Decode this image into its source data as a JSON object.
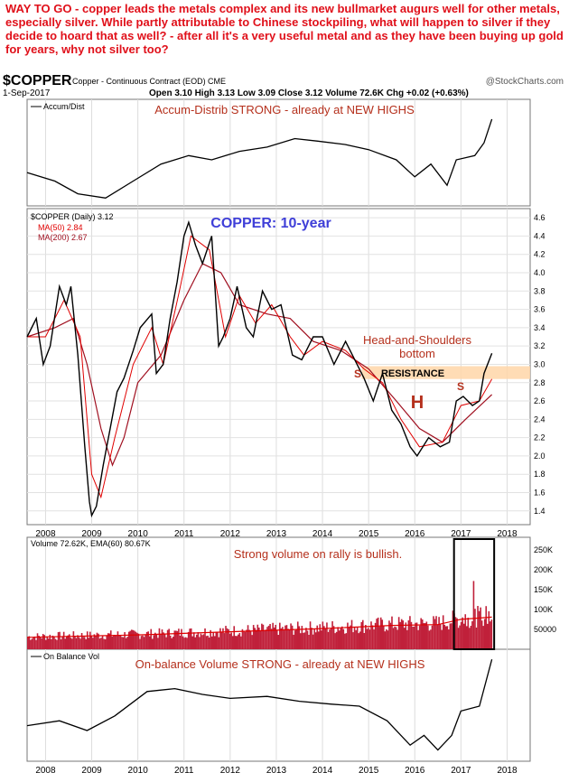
{
  "headline": "WAY TO GO - copper leads the metals complex and its new bullmarket augurs well for other metals, especially silver. While partly attributable to Chinese stockpiling, what will happen to silver if they decide to hoard that as well? - after all it's a very useful metal and as they have been buying up gold for years, why not silver too?",
  "header": {
    "symbol": "$COPPER",
    "description": "Copper - Continuous Contract (EOD) CME",
    "watermark": "@StockCharts.com",
    "date": "1-Sep-2017",
    "ohlc": "Open 3.10  High 3.13  Low 3.09  Close 3.12  Volume 72.6K  Chg +0.02 (+0.63%)"
  },
  "colors": {
    "annotation_red": "#b5301c",
    "title_blue": "#3f3fd8",
    "price": "#000000",
    "ma50": "#e00000",
    "ma200": "#a01020",
    "volume": "#c0203a",
    "resistance_band": "#ffd6a8",
    "grid": "#d8d8d8"
  },
  "panels": {
    "accum": {
      "legend": "Accum/Dist",
      "annotation": "Accum-Distrib STRONG - already at NEW HIGHS"
    },
    "price": {
      "legend_main": "$COPPER (Daily) 3.12",
      "legend_ma50": "MA(50) 2.84",
      "legend_ma200": "MA(200) 2.67",
      "title": "COPPER: 10-year",
      "hs_label_1": "Head-and-Shoulders",
      "hs_label_2": "bottom",
      "resistance_label": "RESISTANCE",
      "left_shoulder": "S",
      "head": "H",
      "right_shoulder": "S"
    },
    "volume": {
      "legend": "Volume 72.62K, EMA(60) 80.67K",
      "annotation": "Strong volume on rally is bullish."
    },
    "obv": {
      "legend": "On Balance Vol",
      "annotation": "On-balance Volume STRONG - already at NEW HIGHS"
    }
  },
  "chart_data": {
    "type": "line",
    "x_labels": [
      "2008",
      "2009",
      "2010",
      "2011",
      "2012",
      "2013",
      "2014",
      "2015",
      "2016",
      "2017",
      "2018"
    ],
    "price": {
      "yticks": [
        1.4,
        1.6,
        1.8,
        2.0,
        2.2,
        2.4,
        2.6,
        2.8,
        3.0,
        3.2,
        3.4,
        3.6,
        3.8,
        4.0,
        4.2,
        4.4,
        4.6
      ],
      "ylim": [
        1.25,
        4.7
      ],
      "resistance_band": [
        2.84,
        2.98
      ],
      "series": [
        {
          "name": "$COPPER",
          "points": [
            [
              2007.6,
              3.3
            ],
            [
              2007.8,
              3.5
            ],
            [
              2007.95,
              3.0
            ],
            [
              2008.1,
              3.2
            ],
            [
              2008.3,
              3.85
            ],
            [
              2008.45,
              3.65
            ],
            [
              2008.55,
              3.85
            ],
            [
              2008.7,
              3.1
            ],
            [
              2008.85,
              2.1
            ],
            [
              2008.95,
              1.5
            ],
            [
              2009.0,
              1.35
            ],
            [
              2009.1,
              1.45
            ],
            [
              2009.25,
              1.9
            ],
            [
              2009.4,
              2.3
            ],
            [
              2009.55,
              2.7
            ],
            [
              2009.7,
              2.85
            ],
            [
              2009.9,
              3.15
            ],
            [
              2010.05,
              3.4
            ],
            [
              2010.3,
              3.55
            ],
            [
              2010.4,
              2.9
            ],
            [
              2010.55,
              3.0
            ],
            [
              2010.7,
              3.5
            ],
            [
              2010.85,
              3.9
            ],
            [
              2011.0,
              4.4
            ],
            [
              2011.1,
              4.55
            ],
            [
              2011.25,
              4.3
            ],
            [
              2011.4,
              4.1
            ],
            [
              2011.6,
              4.4
            ],
            [
              2011.75,
              3.2
            ],
            [
              2011.85,
              3.3
            ],
            [
              2012.0,
              3.5
            ],
            [
              2012.15,
              3.85
            ],
            [
              2012.35,
              3.4
            ],
            [
              2012.5,
              3.3
            ],
            [
              2012.7,
              3.8
            ],
            [
              2012.9,
              3.6
            ],
            [
              2013.1,
              3.65
            ],
            [
              2013.35,
              3.1
            ],
            [
              2013.55,
              3.05
            ],
            [
              2013.8,
              3.3
            ],
            [
              2014.0,
              3.3
            ],
            [
              2014.25,
              3.0
            ],
            [
              2014.5,
              3.25
            ],
            [
              2014.7,
              3.05
            ],
            [
              2014.9,
              2.85
            ],
            [
              2015.1,
              2.6
            ],
            [
              2015.3,
              2.9
            ],
            [
              2015.5,
              2.5
            ],
            [
              2015.7,
              2.35
            ],
            [
              2015.9,
              2.1
            ],
            [
              2016.05,
              2.0
            ],
            [
              2016.3,
              2.2
            ],
            [
              2016.55,
              2.1
            ],
            [
              2016.75,
              2.15
            ],
            [
              2016.9,
              2.6
            ],
            [
              2017.05,
              2.65
            ],
            [
              2017.25,
              2.55
            ],
            [
              2017.4,
              2.6
            ],
            [
              2017.5,
              2.9
            ],
            [
              2017.67,
              3.12
            ]
          ]
        },
        {
          "name": "MA(50)",
          "points": [
            [
              2007.6,
              3.3
            ],
            [
              2008.0,
              3.3
            ],
            [
              2008.4,
              3.7
            ],
            [
              2008.75,
              3.3
            ],
            [
              2009.0,
              1.8
            ],
            [
              2009.2,
              1.55
            ],
            [
              2009.5,
              2.2
            ],
            [
              2009.9,
              3.0
            ],
            [
              2010.3,
              3.4
            ],
            [
              2010.55,
              3.0
            ],
            [
              2010.9,
              3.8
            ],
            [
              2011.15,
              4.4
            ],
            [
              2011.55,
              4.25
            ],
            [
              2011.9,
              3.3
            ],
            [
              2012.2,
              3.75
            ],
            [
              2012.55,
              3.45
            ],
            [
              2012.9,
              3.65
            ],
            [
              2013.3,
              3.3
            ],
            [
              2013.6,
              3.1
            ],
            [
              2014.0,
              3.25
            ],
            [
              2014.5,
              3.15
            ],
            [
              2014.9,
              2.95
            ],
            [
              2015.3,
              2.8
            ],
            [
              2015.7,
              2.4
            ],
            [
              2016.1,
              2.1
            ],
            [
              2016.6,
              2.15
            ],
            [
              2017.0,
              2.55
            ],
            [
              2017.4,
              2.6
            ],
            [
              2017.67,
              2.84
            ]
          ]
        },
        {
          "name": "MA(200)",
          "points": [
            [
              2007.6,
              3.3
            ],
            [
              2008.2,
              3.4
            ],
            [
              2008.6,
              3.5
            ],
            [
              2008.9,
              3.0
            ],
            [
              2009.2,
              2.3
            ],
            [
              2009.45,
              1.9
            ],
            [
              2009.7,
              2.2
            ],
            [
              2010.0,
              2.8
            ],
            [
              2010.5,
              3.1
            ],
            [
              2011.0,
              3.7
            ],
            [
              2011.4,
              4.1
            ],
            [
              2011.8,
              4.0
            ],
            [
              2012.2,
              3.65
            ],
            [
              2012.8,
              3.55
            ],
            [
              2013.3,
              3.5
            ],
            [
              2013.8,
              3.25
            ],
            [
              2014.4,
              3.15
            ],
            [
              2015.0,
              2.95
            ],
            [
              2015.6,
              2.6
            ],
            [
              2016.1,
              2.3
            ],
            [
              2016.6,
              2.15
            ],
            [
              2017.1,
              2.4
            ],
            [
              2017.67,
              2.67
            ]
          ]
        }
      ]
    },
    "volume": {
      "yticks": [
        50000,
        100000,
        150000,
        200000,
        250000
      ],
      "ytick_labels": [
        "50000",
        "100K",
        "150K",
        "200K",
        "250K"
      ],
      "ylim": [
        0,
        270000
      ],
      "ema_points": [
        [
          2007.6,
          30000
        ],
        [
          2010.0,
          36000
        ],
        [
          2012.0,
          44000
        ],
        [
          2014.0,
          52000
        ],
        [
          2015.5,
          60000
        ],
        [
          2016.5,
          62000
        ],
        [
          2017.0,
          75000
        ],
        [
          2017.67,
          80670
        ]
      ],
      "highlight_range": [
        2016.85,
        2017.72
      ]
    },
    "accum_dist": {
      "points": [
        [
          2007.6,
          0.35
        ],
        [
          2008.2,
          0.25
        ],
        [
          2008.7,
          0.1
        ],
        [
          2009.3,
          0.05
        ],
        [
          2009.9,
          0.25
        ],
        [
          2010.5,
          0.45
        ],
        [
          2011.1,
          0.55
        ],
        [
          2011.6,
          0.5
        ],
        [
          2012.2,
          0.6
        ],
        [
          2012.8,
          0.65
        ],
        [
          2013.4,
          0.75
        ],
        [
          2013.9,
          0.72
        ],
        [
          2014.5,
          0.68
        ],
        [
          2015.0,
          0.62
        ],
        [
          2015.6,
          0.5
        ],
        [
          2016.0,
          0.3
        ],
        [
          2016.35,
          0.45
        ],
        [
          2016.7,
          0.2
        ],
        [
          2016.9,
          0.5
        ],
        [
          2017.3,
          0.55
        ],
        [
          2017.5,
          0.7
        ],
        [
          2017.67,
          0.98
        ]
      ]
    },
    "obv": {
      "points": [
        [
          2007.6,
          0.3
        ],
        [
          2008.3,
          0.35
        ],
        [
          2008.9,
          0.25
        ],
        [
          2009.5,
          0.4
        ],
        [
          2010.2,
          0.65
        ],
        [
          2010.8,
          0.68
        ],
        [
          2011.4,
          0.62
        ],
        [
          2012.0,
          0.58
        ],
        [
          2012.8,
          0.6
        ],
        [
          2013.5,
          0.55
        ],
        [
          2014.2,
          0.52
        ],
        [
          2014.8,
          0.5
        ],
        [
          2015.4,
          0.35
        ],
        [
          2015.9,
          0.1
        ],
        [
          2016.2,
          0.2
        ],
        [
          2016.5,
          0.05
        ],
        [
          2016.8,
          0.2
        ],
        [
          2017.0,
          0.45
        ],
        [
          2017.4,
          0.5
        ],
        [
          2017.67,
          0.98
        ]
      ]
    }
  }
}
